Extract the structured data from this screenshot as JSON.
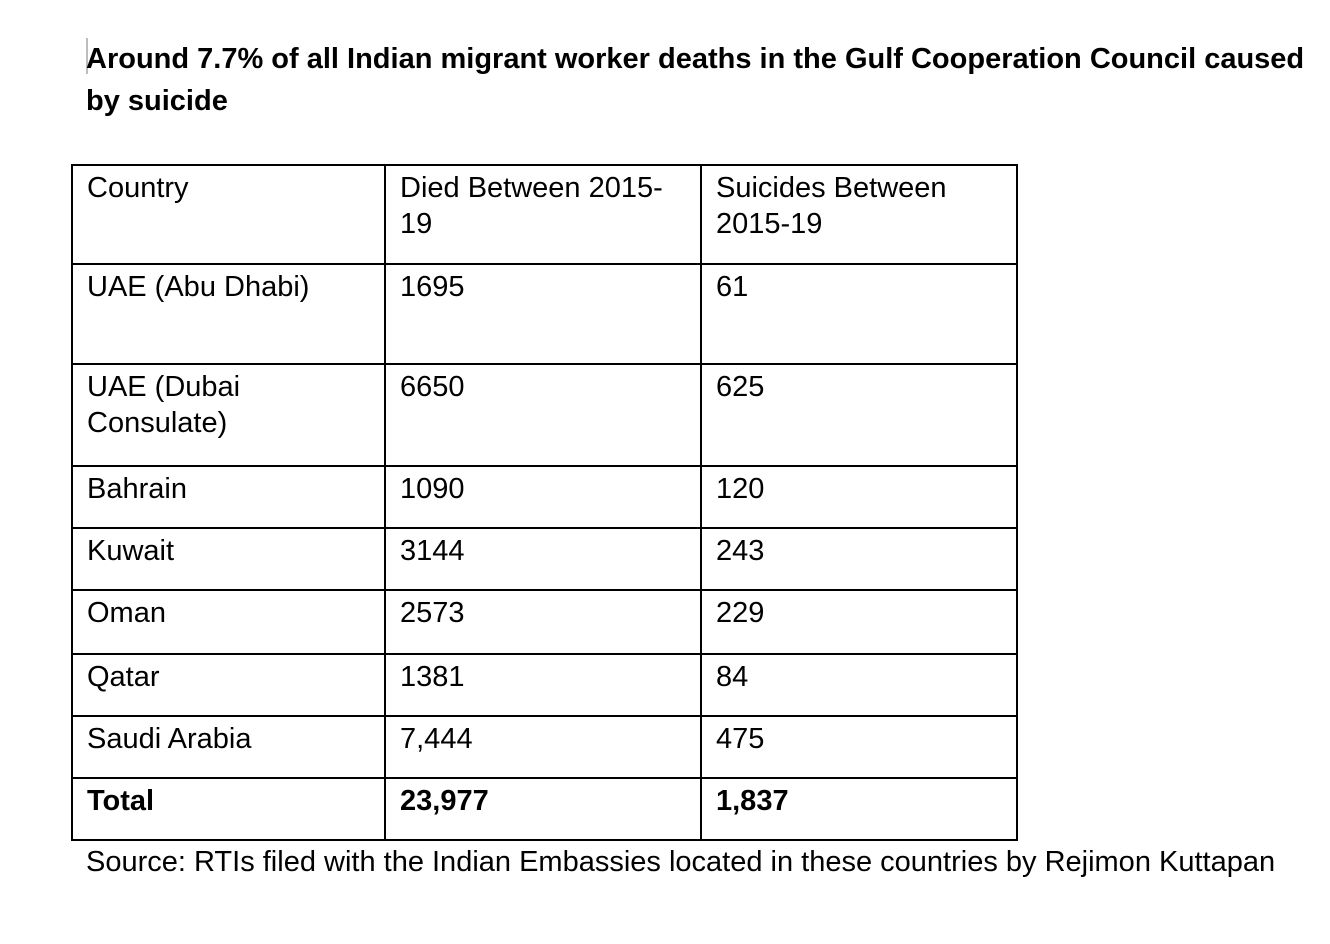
{
  "title": "Around 7.7% of all Indian migrant worker deaths in the Gulf Cooperation Council caused by suicide",
  "table": {
    "headers": [
      "Country",
      "Died Between 2015-19",
      "Suicides Between 2015-19"
    ],
    "rows": [
      [
        "UAE (Abu Dhabi)",
        "1695",
        "61"
      ],
      [
        "UAE (Dubai Consulate)",
        "6650",
        "625"
      ],
      [
        "Bahrain",
        "1090",
        "120"
      ],
      [
        "Kuwait",
        "3144",
        "243"
      ],
      [
        "Oman",
        "2573",
        "229"
      ],
      [
        "Qatar",
        "1381",
        "84"
      ],
      [
        "Saudi Arabia",
        "7,444",
        "475"
      ]
    ],
    "total": [
      "Total",
      "23,977",
      "1,837"
    ]
  },
  "source": "Source: RTIs filed with the Indian Embassies located in these countries by Rejimon Kuttapan"
}
